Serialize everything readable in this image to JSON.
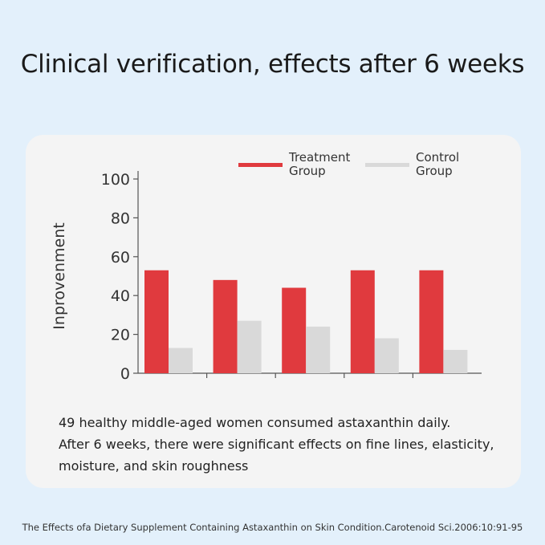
{
  "title": "Clinical verification, effects after 6 weeks",
  "chart_data": {
    "type": "bar",
    "xlabel": "",
    "ylabel": "Inprovenment",
    "ylim": [
      0,
      100
    ],
    "yticks": [
      "0",
      "20",
      "40",
      "60",
      "80",
      "100"
    ],
    "yticks_values": [
      0,
      20,
      40,
      60,
      80,
      100
    ],
    "legend_position": "top-right",
    "grid": false,
    "categories": [
      "",
      "",
      "",
      "",
      ""
    ],
    "series": [
      {
        "name_lines": [
          "Treatment",
          "Group"
        ],
        "color": "#e03a3e",
        "values": [
          53,
          48,
          44,
          53,
          53
        ]
      },
      {
        "name_lines": [
          "Control",
          "Group"
        ],
        "color": "#d9d9d9",
        "values": [
          13,
          27,
          24,
          18,
          12
        ]
      }
    ]
  },
  "caption": {
    "lines": [
      "49 healthy middle-aged women consumed astaxanthin daily.",
      "After 6 weeks, there were significant effects on fine lines, elasticity,",
      "moisture, and skin roughness"
    ]
  },
  "footer": "The Effects ofa Dietary Supplement Containing Astaxanthin on Skin Condition.Carotenoid Sci.2006:10:91-95"
}
